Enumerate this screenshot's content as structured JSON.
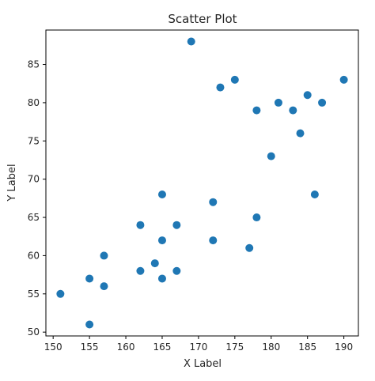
{
  "chart_data": {
    "type": "scatter",
    "title": "Scatter Plot",
    "xlabel": "X Label",
    "ylabel": "Y Label",
    "xlim": [
      149,
      192
    ],
    "ylim": [
      49.5,
      89.5
    ],
    "xticks": [
      150,
      155,
      160,
      165,
      170,
      175,
      180,
      185,
      190
    ],
    "yticks": [
      50,
      55,
      60,
      65,
      70,
      75,
      80,
      85
    ],
    "grid": false,
    "color": "#1f77b4",
    "points": [
      {
        "x": 151,
        "y": 55
      },
      {
        "x": 155,
        "y": 51
      },
      {
        "x": 155,
        "y": 57
      },
      {
        "x": 157,
        "y": 56
      },
      {
        "x": 157,
        "y": 60
      },
      {
        "x": 162,
        "y": 58
      },
      {
        "x": 162,
        "y": 64
      },
      {
        "x": 164,
        "y": 59
      },
      {
        "x": 165,
        "y": 57
      },
      {
        "x": 165,
        "y": 62
      },
      {
        "x": 165,
        "y": 68
      },
      {
        "x": 167,
        "y": 58
      },
      {
        "x": 167,
        "y": 64
      },
      {
        "x": 169,
        "y": 88
      },
      {
        "x": 172,
        "y": 62
      },
      {
        "x": 172,
        "y": 67
      },
      {
        "x": 173,
        "y": 82
      },
      {
        "x": 175,
        "y": 83
      },
      {
        "x": 177,
        "y": 61
      },
      {
        "x": 178,
        "y": 65
      },
      {
        "x": 178,
        "y": 79
      },
      {
        "x": 180,
        "y": 73
      },
      {
        "x": 181,
        "y": 80
      },
      {
        "x": 183,
        "y": 79
      },
      {
        "x": 184,
        "y": 76
      },
      {
        "x": 185,
        "y": 81
      },
      {
        "x": 186,
        "y": 68
      },
      {
        "x": 187,
        "y": 80
      },
      {
        "x": 190,
        "y": 83
      }
    ]
  }
}
